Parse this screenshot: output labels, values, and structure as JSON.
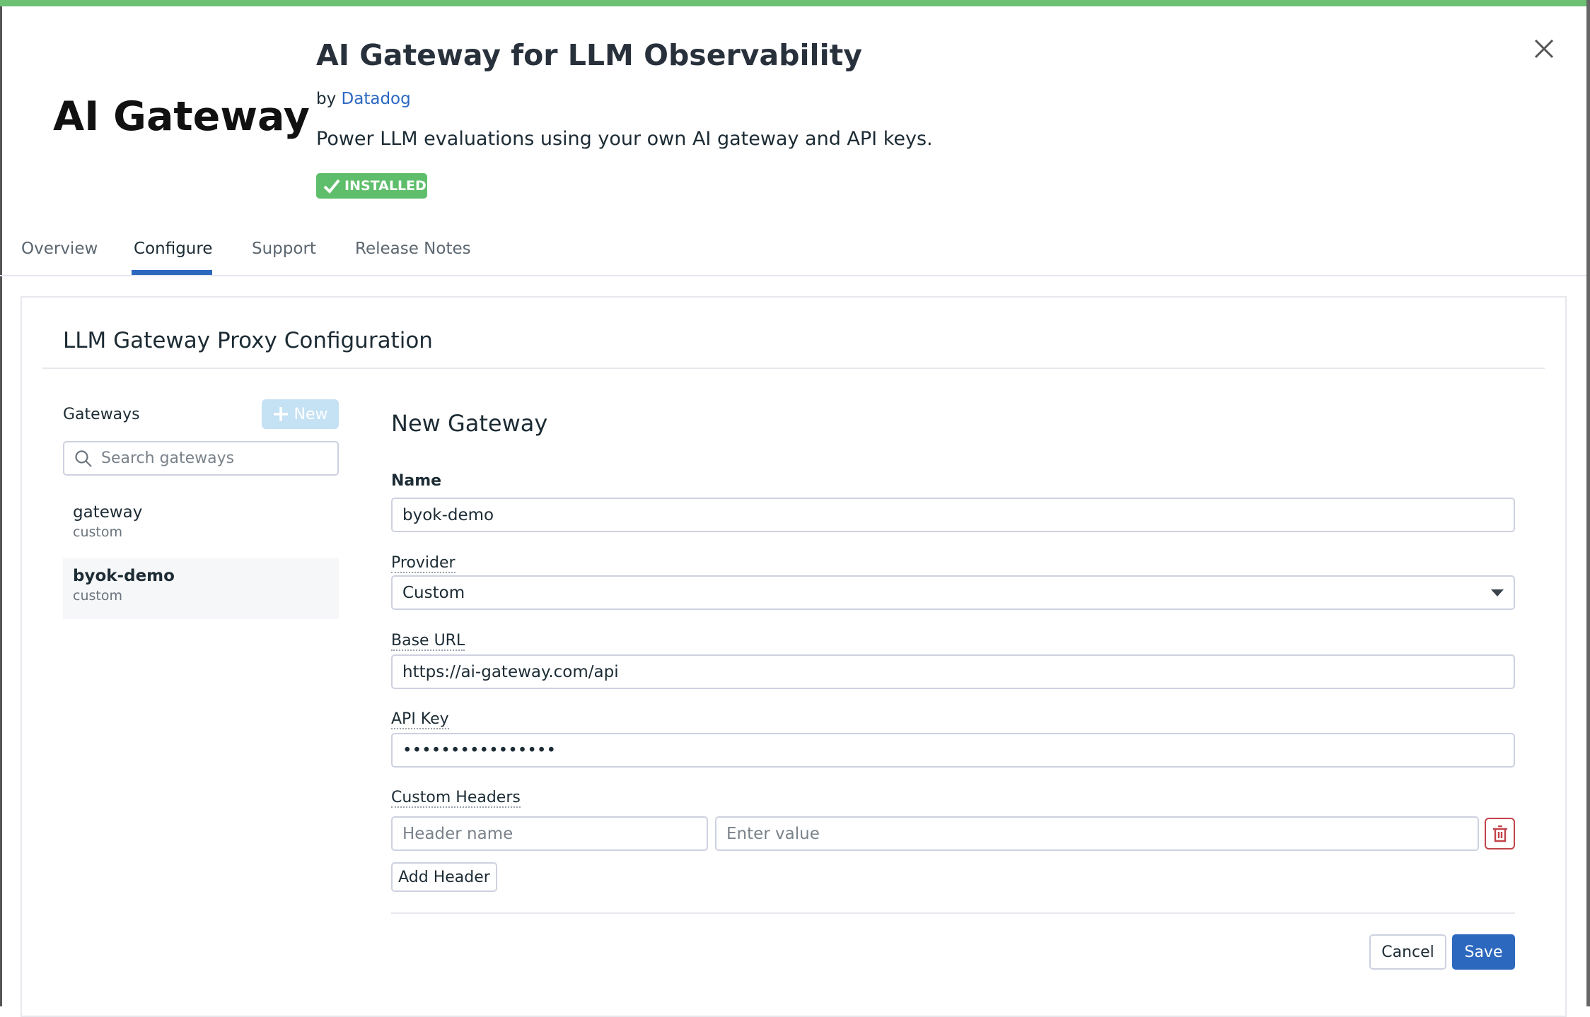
{
  "colors": {
    "accent": "#2d68bf",
    "installed": "#5fbe6c",
    "topbar": "#6cc173",
    "danger": "#c2434b"
  },
  "header": {
    "logo_text": "AI Gateway",
    "title": "AI Gateway for LLM Observability",
    "by_prefix": "by",
    "author": "Datadog",
    "description": "Power LLM evaluations using your own AI gateway and API keys.",
    "badge": "INSTALLED"
  },
  "tabs": [
    {
      "label": "Overview"
    },
    {
      "label": "Configure",
      "active": true
    },
    {
      "label": "Support"
    },
    {
      "label": "Release Notes"
    }
  ],
  "config": {
    "title": "LLM Gateway Proxy Configuration",
    "sidebar": {
      "label": "Gateways",
      "new_label": "New",
      "search_placeholder": "Search gateways",
      "items": [
        {
          "name": "gateway",
          "type": "custom"
        },
        {
          "name": "byok-demo",
          "type": "custom",
          "selected": true
        }
      ]
    },
    "form": {
      "title": "New Gateway",
      "name_label": "Name",
      "name_value": "byok-demo",
      "provider_label": "Provider",
      "provider_value": "Custom",
      "base_url_label": "Base URL",
      "base_url_value": "https://ai-gateway.com/api",
      "api_key_label": "API Key",
      "api_key_value": "••••••••••••••••",
      "headers_label": "Custom Headers",
      "header_name_placeholder": "Header name",
      "header_value_placeholder": "Enter value",
      "add_header": "Add Header",
      "cancel": "Cancel",
      "save": "Save"
    }
  }
}
